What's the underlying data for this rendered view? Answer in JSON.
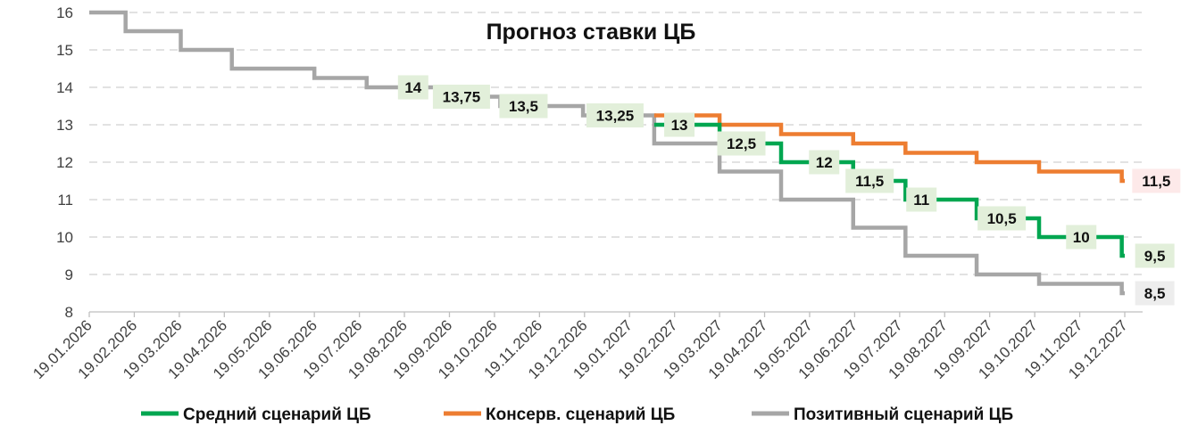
{
  "chart_data": {
    "type": "line",
    "title": "Прогноз ставки ЦБ",
    "xlabel": "",
    "ylabel": "",
    "ylim": [
      8,
      16
    ],
    "y_ticks": [
      "8",
      "9",
      "10",
      "11",
      "12",
      "13",
      "14",
      "15",
      "16"
    ],
    "x_ticks": [
      "19.01.2026",
      "19.02.2026",
      "19.03.2026",
      "19.04.2026",
      "19.05.2026",
      "19.06.2026",
      "19.07.2026",
      "19.08.2026",
      "19.09.2026",
      "19.10.2026",
      "19.11.2026",
      "19.12.2026",
      "19.01.2027",
      "19.02.2027",
      "19.03.2027",
      "19.04.2027",
      "19.05.2027",
      "19.06.2027",
      "19.07.2027",
      "19.08.2027",
      "19.09.2027",
      "19.10.2027",
      "19.11.2027",
      "19.12.2027"
    ],
    "grid": "horizontal dashed",
    "legend_position": "bottom",
    "series": [
      {
        "name": "Позитивный сценарий ЦБ",
        "color": "#a6a6a6",
        "steps": [
          {
            "date": "2026-01-19",
            "value": 16
          },
          {
            "date": "2026-02-13",
            "value": 15.5
          },
          {
            "date": "2026-03-20",
            "value": 15
          },
          {
            "date": "2026-04-24",
            "value": 14.5
          },
          {
            "date": "2026-06-19",
            "value": 14.25
          },
          {
            "date": "2026-07-24",
            "value": 14
          },
          {
            "date": "2026-09-11",
            "value": 13.75
          },
          {
            "date": "2026-10-23",
            "value": 13.5
          },
          {
            "date": "2026-12-18",
            "value": 13.25
          },
          {
            "date": "2027-02-05",
            "value": 12.5
          },
          {
            "date": "2027-03-19",
            "value": 11.75
          },
          {
            "date": "2027-04-30",
            "value": 11
          },
          {
            "date": "2027-06-18",
            "value": 10.25
          },
          {
            "date": "2027-07-23",
            "value": 9.5
          },
          {
            "date": "2027-09-10",
            "value": 9
          },
          {
            "date": "2027-10-22",
            "value": 8.75
          },
          {
            "date": "2027-12-17",
            "value": 8.5
          },
          {
            "date": "2027-12-19",
            "value": 8.5
          }
        ]
      },
      {
        "name": "Консерв. сценарий ЦБ",
        "color": "#ed7d31",
        "steps": [
          {
            "date": "2027-02-05",
            "value": 13.25
          },
          {
            "date": "2027-03-19",
            "value": 13
          },
          {
            "date": "2027-04-30",
            "value": 12.75
          },
          {
            "date": "2027-06-18",
            "value": 12.5
          },
          {
            "date": "2027-07-23",
            "value": 12.25
          },
          {
            "date": "2027-09-10",
            "value": 12
          },
          {
            "date": "2027-10-22",
            "value": 11.75
          },
          {
            "date": "2027-12-17",
            "value": 11.5
          },
          {
            "date": "2027-12-19",
            "value": 11.5
          }
        ]
      },
      {
        "name": "Средний сценарий ЦБ",
        "color": "#00a650",
        "steps": [
          {
            "date": "2027-02-05",
            "value": 13
          },
          {
            "date": "2027-03-19",
            "value": 12.5
          },
          {
            "date": "2027-04-30",
            "value": 12
          },
          {
            "date": "2027-06-18",
            "value": 11.5
          },
          {
            "date": "2027-07-23",
            "value": 11
          },
          {
            "date": "2027-09-10",
            "value": 10.5
          },
          {
            "date": "2027-10-22",
            "value": 10
          },
          {
            "date": "2027-12-17",
            "value": 9.5
          },
          {
            "date": "2027-12-19",
            "value": 9.5
          }
        ]
      }
    ],
    "data_labels": [
      {
        "text": "14",
        "date": "2026-08-25",
        "value": 14,
        "box": "#e2efda"
      },
      {
        "text": "13,75",
        "date": "2026-09-27",
        "value": 13.75,
        "box": "#e2efda"
      },
      {
        "text": "13,5",
        "date": "2026-11-08",
        "value": 13.5,
        "box": "#e2efda"
      },
      {
        "text": "13,25",
        "date": "2027-01-09",
        "value": 13.25,
        "box": "#e2efda"
      },
      {
        "text": "13",
        "date": "2027-02-22",
        "value": 13,
        "box": "#e2efda"
      },
      {
        "text": "12,5",
        "date": "2027-04-03",
        "value": 12.5,
        "box": "#e2efda"
      },
      {
        "text": "12",
        "date": "2027-05-29",
        "value": 12,
        "box": "#e2efda"
      },
      {
        "text": "11,5",
        "date": "2027-06-29",
        "value": 11.5,
        "box": "#e2efda"
      },
      {
        "text": "11",
        "date": "2027-08-03",
        "value": 11,
        "box": "#e2efda"
      },
      {
        "text": "10,5",
        "date": "2027-09-27",
        "value": 10.5,
        "box": "#e2efda"
      },
      {
        "text": "10",
        "date": "2027-11-20",
        "value": 10,
        "box": "#e2efda"
      },
      {
        "text": "9,5",
        "date": "2028-01-08",
        "value": 9.5,
        "box": "#e2efda"
      },
      {
        "text": "11,5",
        "date": "2028-01-09",
        "value": 11.5,
        "box": "#fde9e9"
      },
      {
        "text": "8,5",
        "date": "2028-01-08",
        "value": 8.5,
        "box": "#ededed"
      }
    ]
  },
  "legend": [
    {
      "name": "Средний сценарий ЦБ",
      "color": "#00a650"
    },
    {
      "name": "Консерв. сценарий ЦБ",
      "color": "#ed7d31"
    },
    {
      "name": "Позитивный сценарий ЦБ",
      "color": "#a6a6a6"
    }
  ]
}
